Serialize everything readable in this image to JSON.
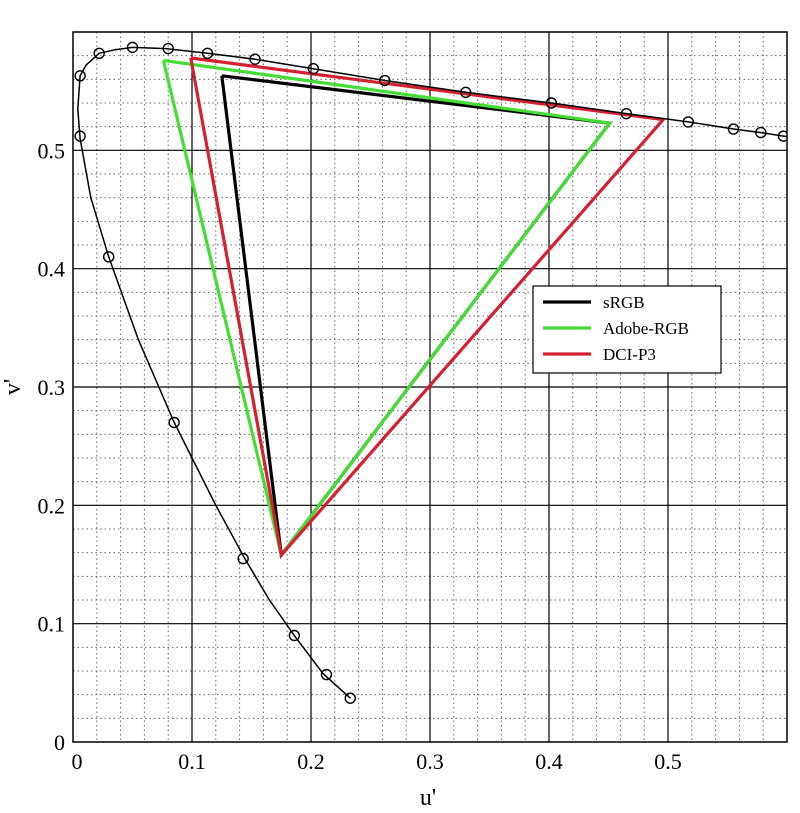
{
  "chart_data": {
    "type": "line",
    "title": "",
    "xlabel": "u'",
    "ylabel": "v'",
    "xlim": [
      0,
      0.6
    ],
    "ylim": [
      0,
      0.6
    ],
    "grid": {
      "major": true,
      "minor": true,
      "minor_style": "dotted"
    },
    "legend_position": "right-middle",
    "x_ticks": [
      {
        "value": 0,
        "label": "0"
      },
      {
        "value": 0.1,
        "label": "0.1"
      },
      {
        "value": 0.2,
        "label": "0.2"
      },
      {
        "value": 0.3,
        "label": "0.3"
      },
      {
        "value": 0.4,
        "label": "0.4"
      },
      {
        "value": 0.5,
        "label": "0.5"
      }
    ],
    "y_ticks": [
      {
        "value": 0,
        "label": "0"
      },
      {
        "value": 0.1,
        "label": "0.1"
      },
      {
        "value": 0.2,
        "label": "0.2"
      },
      {
        "value": 0.3,
        "label": "0.3"
      },
      {
        "value": 0.4,
        "label": "0.4"
      },
      {
        "value": 0.5,
        "label": "0.5"
      }
    ],
    "locus": {
      "color": "#000000",
      "curve": [
        [
          0.233,
          0.037
        ],
        [
          0.21,
          0.058
        ],
        [
          0.186,
          0.09
        ],
        [
          0.165,
          0.12
        ],
        [
          0.145,
          0.154
        ],
        [
          0.12,
          0.2
        ],
        [
          0.085,
          0.27
        ],
        [
          0.055,
          0.34
        ],
        [
          0.03,
          0.41
        ],
        [
          0.015,
          0.46
        ],
        [
          0.006,
          0.51
        ],
        [
          0.004,
          0.535
        ],
        [
          0.006,
          0.563
        ],
        [
          0.011,
          0.572
        ],
        [
          0.022,
          0.582
        ],
        [
          0.035,
          0.585
        ],
        [
          0.05,
          0.587
        ],
        [
          0.078,
          0.586
        ],
        [
          0.113,
          0.582
        ],
        [
          0.153,
          0.577
        ],
        [
          0.202,
          0.569
        ],
        [
          0.262,
          0.559
        ],
        [
          0.33,
          0.549
        ],
        [
          0.402,
          0.54
        ],
        [
          0.465,
          0.531
        ],
        [
          0.517,
          0.524
        ],
        [
          0.555,
          0.518
        ],
        [
          0.578,
          0.515
        ],
        [
          0.597,
          0.512
        ],
        [
          0.62,
          0.509
        ]
      ],
      "markers": [
        [
          0.233,
          0.037
        ],
        [
          0.213,
          0.057
        ],
        [
          0.186,
          0.09
        ],
        [
          0.143,
          0.155
        ],
        [
          0.085,
          0.27
        ],
        [
          0.03,
          0.41
        ],
        [
          0.006,
          0.512
        ],
        [
          0.006,
          0.563
        ],
        [
          0.022,
          0.582
        ],
        [
          0.05,
          0.587
        ],
        [
          0.08,
          0.586
        ],
        [
          0.113,
          0.582
        ],
        [
          0.153,
          0.577
        ],
        [
          0.202,
          0.569
        ],
        [
          0.262,
          0.559
        ],
        [
          0.33,
          0.549
        ],
        [
          0.402,
          0.54
        ],
        [
          0.465,
          0.531
        ],
        [
          0.517,
          0.524
        ],
        [
          0.555,
          0.518
        ],
        [
          0.578,
          0.515
        ],
        [
          0.597,
          0.512
        ]
      ]
    },
    "series": [
      {
        "name": "sRGB",
        "color": "#000000",
        "points": [
          [
            0.125,
            0.563
          ],
          [
            0.451,
            0.523
          ],
          [
            0.175,
            0.158
          ],
          [
            0.125,
            0.563
          ]
        ]
      },
      {
        "name": "Adobe-RGB",
        "color": "#44dd33",
        "points": [
          [
            0.076,
            0.576
          ],
          [
            0.451,
            0.523
          ],
          [
            0.175,
            0.158
          ],
          [
            0.076,
            0.576
          ]
        ]
      },
      {
        "name": "DCI-P3",
        "color": "#d42030",
        "points": [
          [
            0.099,
            0.578
          ],
          [
            0.496,
            0.526
          ],
          [
            0.175,
            0.158
          ],
          [
            0.099,
            0.578
          ]
        ]
      }
    ]
  }
}
